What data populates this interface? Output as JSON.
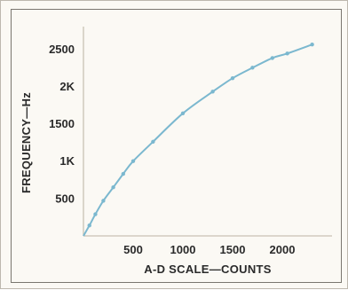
{
  "chart_data": {
    "type": "line",
    "title": "",
    "xlabel": "A-D SCALE—COUNTS",
    "ylabel": "FREQUENCY—Hz",
    "xlim": [
      0,
      2500
    ],
    "ylim": [
      0,
      2800
    ],
    "x_ticks": [
      {
        "value": 500,
        "label": "500"
      },
      {
        "value": 1000,
        "label": "1000"
      },
      {
        "value": 1500,
        "label": "1500"
      },
      {
        "value": 2000,
        "label": "2000"
      }
    ],
    "y_ticks": [
      {
        "value": 500,
        "label": "500"
      },
      {
        "value": 1000,
        "label": "1K"
      },
      {
        "value": 1500,
        "label": "1500"
      },
      {
        "value": 2000,
        "label": "2K"
      },
      {
        "value": 2500,
        "label": "2500"
      }
    ],
    "grid": false,
    "colors": {
      "curve": "#7bb8cf",
      "axis": "#c9c2b4"
    },
    "series": [
      {
        "x": [
          0,
          60,
          120,
          200,
          300,
          400,
          500,
          700,
          1000,
          1300,
          1500,
          1700,
          1900,
          2050,
          2300
        ],
        "y": [
          0,
          140,
          290,
          470,
          650,
          830,
          1000,
          1260,
          1640,
          1930,
          2110,
          2250,
          2380,
          2440,
          2560
        ]
      }
    ]
  }
}
